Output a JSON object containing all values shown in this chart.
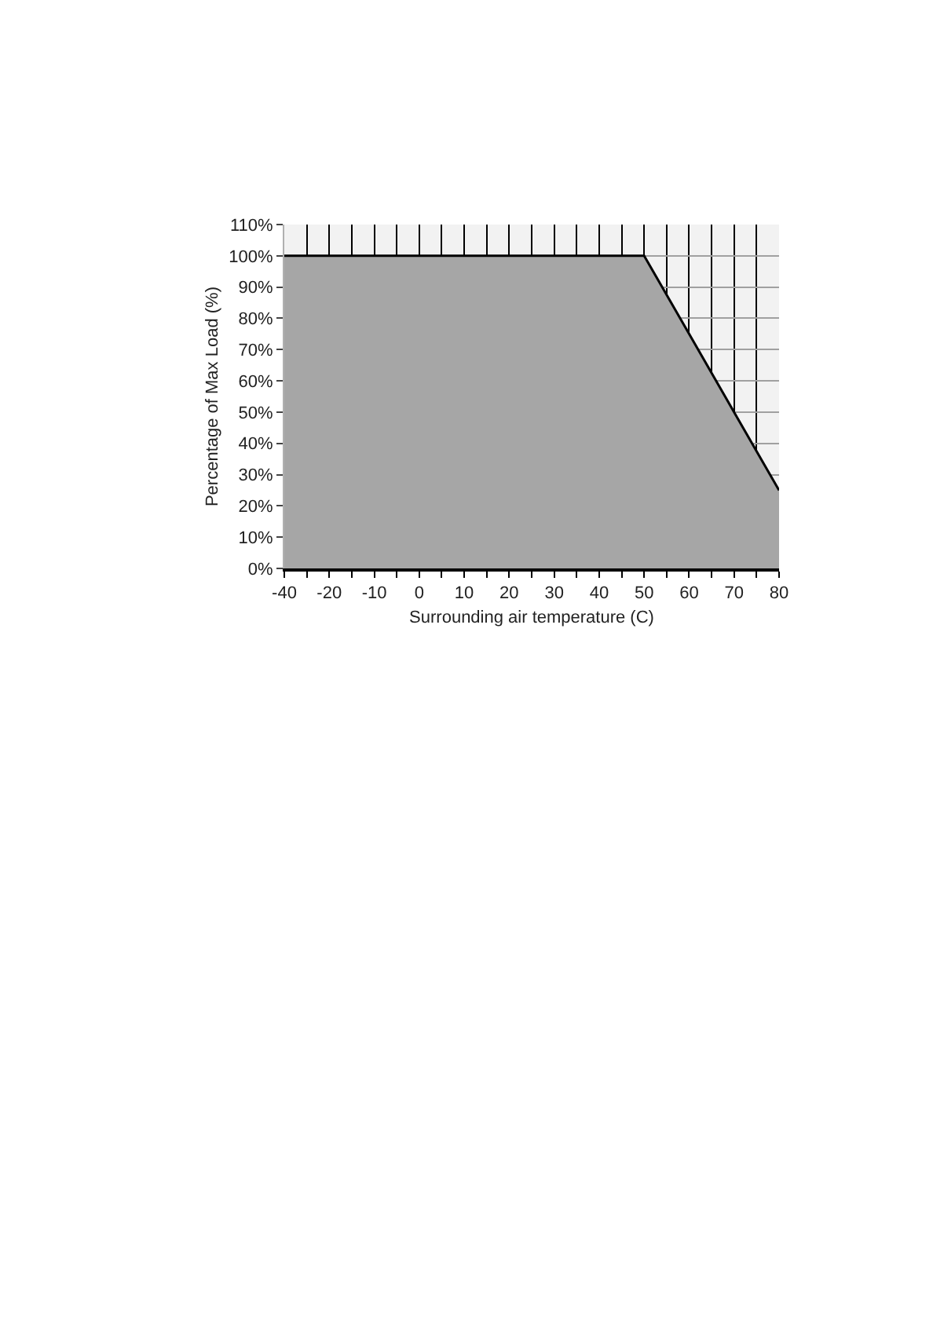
{
  "chart_data": {
    "type": "area",
    "xlabel": "Surrounding air temperature (C)",
    "ylabel": "Percentage of Max Load (%)",
    "categories": [
      "-40",
      "-20",
      "-10",
      "0",
      "10",
      "20",
      "30",
      "40",
      "50",
      "60",
      "70",
      "80"
    ],
    "values": [
      100,
      100,
      100,
      100,
      100,
      100,
      100,
      100,
      100,
      75,
      50,
      25
    ],
    "color": "#a6a6a6",
    "ylim": [
      0,
      110
    ],
    "yticks": [
      {
        "value": 0,
        "label": "0%"
      },
      {
        "value": 10,
        "label": "10%"
      },
      {
        "value": 20,
        "label": "20%"
      },
      {
        "value": 30,
        "label": "30%"
      },
      {
        "value": 40,
        "label": "40%"
      },
      {
        "value": 50,
        "label": "50%"
      },
      {
        "value": 60,
        "label": "60%"
      },
      {
        "value": 70,
        "label": "70%"
      },
      {
        "value": 80,
        "label": "80%"
      },
      {
        "value": 90,
        "label": "90%"
      },
      {
        "value": 100,
        "label": "100%"
      },
      {
        "value": 110,
        "label": "110%"
      }
    ],
    "grid": true
  }
}
